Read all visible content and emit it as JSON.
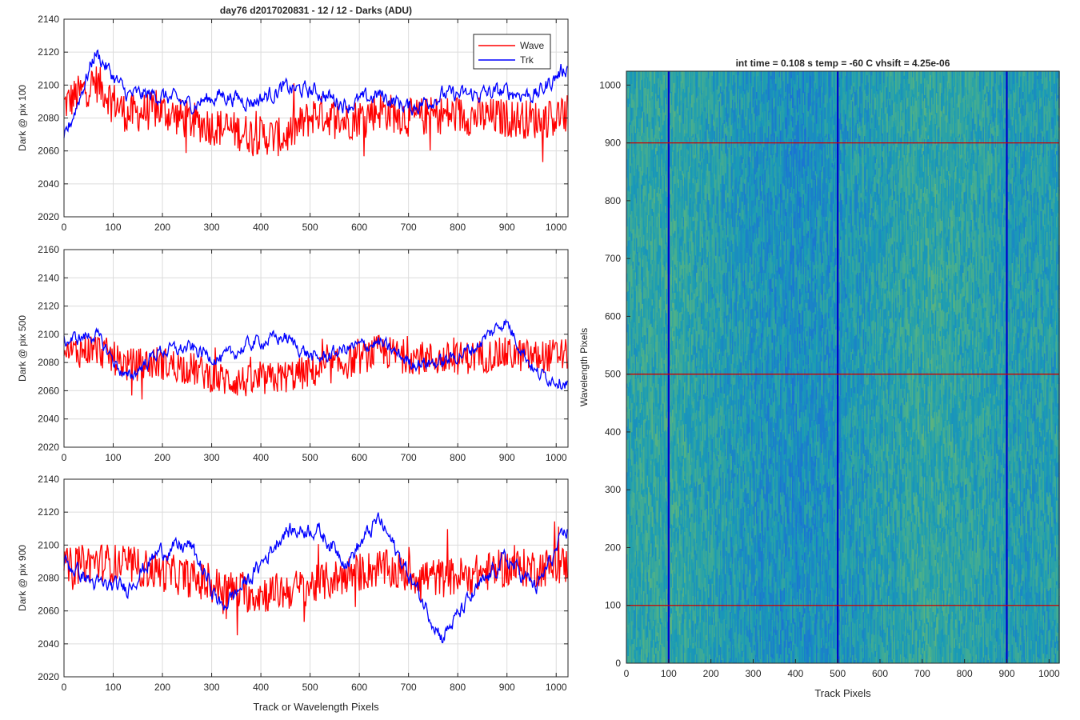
{
  "figure_title": "day76 d2017020831 - 12 / 12 - Darks (ADU)",
  "chart_data": [
    {
      "type": "line",
      "title": "day76 d2017020831 - 12 / 12 - Darks (ADU)",
      "xlabel": "",
      "ylabel": "Dark @ pix 100",
      "xlim": [
        0,
        1024
      ],
      "ylim": [
        2020,
        2140
      ],
      "xticks": [
        0,
        100,
        200,
        300,
        400,
        500,
        600,
        700,
        800,
        900,
        1000
      ],
      "yticks": [
        2020,
        2040,
        2060,
        2080,
        2100,
        2120,
        2140
      ],
      "grid": true,
      "legend": "top-right",
      "series": [
        {
          "name": "Wave",
          "color": "#ff0000",
          "x_step": 64,
          "values": [
            2088,
            2102,
            2082,
            2085,
            2078,
            2074,
            2070,
            2068,
            2083,
            2078,
            2085,
            2080,
            2082,
            2081,
            2080,
            2079,
            2082
          ]
        },
        {
          "name": "Trk",
          "color": "#0000ff",
          "x_step": 64,
          "values": [
            2066,
            2120,
            2094,
            2094,
            2088,
            2094,
            2090,
            2098,
            2096,
            2088,
            2094,
            2086,
            2094,
            2094,
            2096,
            2094,
            2112
          ]
        }
      ]
    },
    {
      "type": "line",
      "title": "",
      "xlabel": "",
      "ylabel": "Dark @ pix 500",
      "xlim": [
        0,
        1024
      ],
      "ylim": [
        2020,
        2160
      ],
      "xticks": [
        0,
        100,
        200,
        300,
        400,
        500,
        600,
        700,
        800,
        900,
        1000
      ],
      "yticks": [
        2020,
        2040,
        2060,
        2080,
        2100,
        2120,
        2140,
        2160
      ],
      "grid": true,
      "series": [
        {
          "name": "Wave",
          "color": "#ff0000",
          "x_step": 64,
          "values": [
            2086,
            2090,
            2078,
            2080,
            2076,
            2068,
            2066,
            2070,
            2074,
            2080,
            2088,
            2084,
            2082,
            2084,
            2086,
            2084,
            2086
          ]
        },
        {
          "name": "Trk",
          "color": "#0000ff",
          "x_step": 64,
          "values": [
            2095,
            2100,
            2068,
            2088,
            2090,
            2082,
            2094,
            2098,
            2082,
            2090,
            2094,
            2080,
            2080,
            2090,
            2110,
            2072,
            2066
          ]
        }
      ]
    },
    {
      "type": "line",
      "title": "",
      "xlabel": "Track or Wavelength Pixels",
      "ylabel": "Dark @ pix 900",
      "xlim": [
        0,
        1024
      ],
      "ylim": [
        2020,
        2140
      ],
      "xticks": [
        0,
        100,
        200,
        300,
        400,
        500,
        600,
        700,
        800,
        900,
        1000
      ],
      "yticks": [
        2020,
        2040,
        2060,
        2080,
        2100,
        2120,
        2140
      ],
      "grid": true,
      "series": [
        {
          "name": "Wave",
          "color": "#ff0000",
          "x_step": 64,
          "values": [
            2086,
            2090,
            2088,
            2084,
            2080,
            2074,
            2070,
            2072,
            2076,
            2082,
            2086,
            2082,
            2080,
            2082,
            2086,
            2086,
            2088
          ]
        },
        {
          "name": "Trk",
          "color": "#0000ff",
          "x_step": 64,
          "values": [
            2090,
            2076,
            2074,
            2096,
            2100,
            2062,
            2082,
            2108,
            2110,
            2090,
            2116,
            2080,
            2044,
            2070,
            2092,
            2074,
            2110
          ]
        }
      ]
    },
    {
      "type": "heatmap",
      "title": "int time = 0.108 s   temp = -60 C   vhsift = 4.25e-06",
      "xlabel": "Track Pixels",
      "ylabel": "Wavelength Pixels",
      "xlim": [
        0,
        1024
      ],
      "ylim": [
        0,
        1024
      ],
      "xticks": [
        0,
        100,
        200,
        300,
        400,
        500,
        600,
        700,
        800,
        900,
        1000
      ],
      "yticks": [
        0,
        100,
        200,
        300,
        400,
        500,
        600,
        700,
        800,
        900,
        1000
      ],
      "colormap": [
        "#1a6fd6",
        "#1a9bb5",
        "#4cb08a",
        "#a7c04a"
      ],
      "column_brightness": [
        0.45,
        0.5,
        0.4,
        0.3,
        0.25,
        0.32,
        0.42,
        0.5,
        0.45,
        0.38,
        0.4
      ],
      "marker_columns": [
        100,
        500,
        900
      ],
      "marker_rows": [
        100,
        500,
        900
      ],
      "marker_column_color": "#0000cc",
      "marker_row_color": "#cc0000"
    }
  ]
}
